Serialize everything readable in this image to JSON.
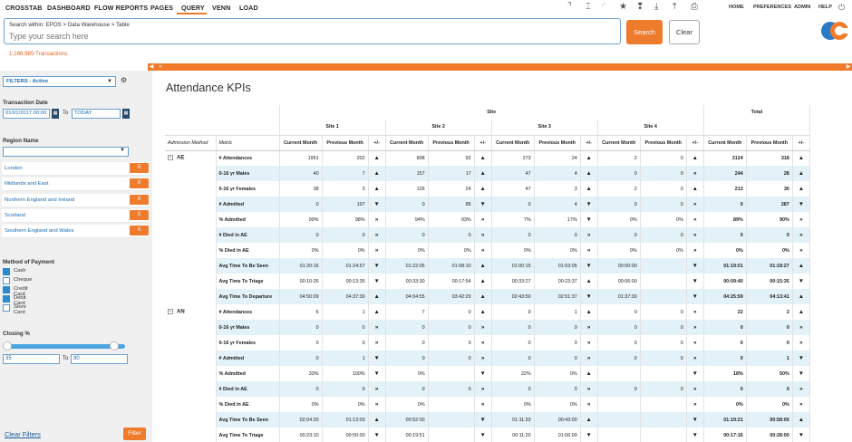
{
  "nav": {
    "items": [
      "CROSSTAB",
      "DASHBOARD",
      "FLOW REPORTS",
      "PAGES",
      "QUERY",
      "VENN",
      "LOAD"
    ],
    "active": "QUERY",
    "right_links": [
      "HOME",
      "PREFERENCES",
      "ADMIN",
      "HELP"
    ],
    "tool_icons": [
      "corner-icon",
      "cursor-icon",
      "loading-icon",
      "star-icon",
      "tag-icon",
      "download-icon",
      "upload-icon",
      "download-tray-icon",
      "printer-icon"
    ],
    "power_icon": "power-icon"
  },
  "search": {
    "breadcrumb": "Search within: EPOS   >   Data Warehouse   >   Table",
    "placeholder": "Type your search here",
    "search_label": "Search",
    "clear_label": "Clear",
    "transactions": "1,166,985 Transactions"
  },
  "colors": {
    "accent": "#ef7b2c",
    "link": "#1a6bb0",
    "row_alt": "#e3f1f8"
  },
  "sidebar": {
    "filters_label": "FILTERS - Active",
    "transaction_date_label": "Transaction Date",
    "date_from": "01/01/2017 00:00",
    "to_label": "To",
    "date_to": "TODAY",
    "region_label": "Region Name",
    "regions": [
      "London",
      "Midlands and East",
      "Northern England and Ireland",
      "Scotland",
      "Southern England and Wales"
    ],
    "remove_label": "X",
    "payment_label": "Method of Payment",
    "payments": [
      {
        "label": "Cash",
        "checked": true
      },
      {
        "label": "Cheque",
        "checked": false
      },
      {
        "label": "Credit Card",
        "checked": true
      },
      {
        "label": "Debit Card",
        "checked": true
      },
      {
        "label": "Store Card",
        "checked": false
      }
    ],
    "closing_label": "Closing %",
    "closing_from": "35",
    "closing_to": "90",
    "closing_range": [
      0.35,
      0.9
    ],
    "clear_filters": "Clear Filters",
    "filter_button": "Filter"
  },
  "report": {
    "title": "Attendance KPIs",
    "site_header": "Site",
    "total_header": "Total",
    "sites": [
      "Site 1",
      "Site 2",
      "Site 3",
      "Site 4"
    ],
    "admission_method_header": "Admission Method",
    "metric_header": "Metric",
    "col_current": "Current Month",
    "col_previous": "Previous Month",
    "col_change": "+/-",
    "groups": [
      {
        "name": "AE",
        "rows": [
          {
            "metric": "# Attendances",
            "cells": [
              [
                "1951",
                "202",
                "up"
              ],
              [
                "898",
                "92",
                "up"
              ],
              [
                "273",
                "24",
                "up"
              ],
              [
                "2",
                "0",
                "up"
              ],
              [
                "3124",
                "318",
                "up"
              ]
            ]
          },
          {
            "metric": "0-16 yr Males",
            "cells": [
              [
                "40",
                "7",
                "up"
              ],
              [
                "157",
                "17",
                "up"
              ],
              [
                "47",
                "4",
                "up"
              ],
              [
                "0",
                "0",
                "right"
              ],
              [
                "244",
                "28",
                "up"
              ]
            ]
          },
          {
            "metric": "0-16 yr Females",
            "cells": [
              [
                "38",
                "3",
                "up"
              ],
              [
                "126",
                "24",
                "up"
              ],
              [
                "47",
                "3",
                "up"
              ],
              [
                "2",
                "0",
                "up"
              ],
              [
                "213",
                "30",
                "up"
              ]
            ]
          },
          {
            "metric": "# Admitted",
            "cells": [
              [
                "0",
                "197",
                "down"
              ],
              [
                "0",
                "86",
                "down"
              ],
              [
                "0",
                "4",
                "down"
              ],
              [
                "0",
                "0",
                "right"
              ],
              [
                "0",
                "287",
                "down"
              ]
            ]
          },
          {
            "metric": "% Admitted",
            "cells": [
              [
                "99%",
                "98%",
                "right"
              ],
              [
                "94%",
                "93%",
                "right"
              ],
              [
                "7%",
                "17%",
                "down"
              ],
              [
                "0%",
                "0%",
                "right"
              ],
              [
                "89%",
                "90%",
                "right"
              ]
            ]
          },
          {
            "metric": "# Died in AE",
            "cells": [
              [
                "0",
                "0",
                "right"
              ],
              [
                "0",
                "0",
                "right"
              ],
              [
                "0",
                "0",
                "right"
              ],
              [
                "0",
                "0",
                "right"
              ],
              [
                "0",
                "0",
                "right"
              ]
            ]
          },
          {
            "metric": "% Died in AE",
            "cells": [
              [
                "0%",
                "0%",
                "right"
              ],
              [
                "0%",
                "0%",
                "right"
              ],
              [
                "0%",
                "0%",
                "right"
              ],
              [
                "0%",
                "0%",
                "right"
              ],
              [
                "0%",
                "0%",
                "right"
              ]
            ]
          },
          {
            "metric": "Avg Time To Be Seen",
            "cells": [
              [
                "01:20:16",
                "01:24:57",
                "down"
              ],
              [
                "01:22:05",
                "01:08:10",
                "up"
              ],
              [
                "01:00:15",
                "01:03:05",
                "down"
              ],
              [
                "00:50:00",
                "",
                "down"
              ],
              [
                "01:19:01",
                "01:18:27",
                "up"
              ]
            ]
          },
          {
            "metric": "Avg Time To Triage",
            "cells": [
              [
                "00:10:26",
                "00:13:35",
                "down"
              ],
              [
                "00:33:30",
                "00:17:54",
                "up"
              ],
              [
                "00:33:27",
                "00:23:37",
                "up"
              ],
              [
                "00:06:00",
                "",
                "down"
              ],
              [
                "00:09:40",
                "00:15:35",
                "down"
              ]
            ]
          },
          {
            "metric": "Avg Time To Departure",
            "cells": [
              [
                "04:50:09",
                "04:37:39",
                "up"
              ],
              [
                "04:04:55",
                "03:42:29",
                "up"
              ],
              [
                "02:43:50",
                "02:51:37",
                "down"
              ],
              [
                "01:37:30",
                "",
                "down"
              ],
              [
                "04:25:59",
                "04:13:41",
                "up"
              ]
            ]
          }
        ]
      },
      {
        "name": "AN",
        "rows": [
          {
            "metric": "# Attendances",
            "cells": [
              [
                "6",
                "1",
                "up"
              ],
              [
                "7",
                "0",
                "up"
              ],
              [
                "9",
                "1",
                "up"
              ],
              [
                "0",
                "0",
                "right"
              ],
              [
                "22",
                "2",
                "up"
              ]
            ]
          },
          {
            "metric": "0-16 yr Males",
            "cells": [
              [
                "0",
                "0",
                "right"
              ],
              [
                "0",
                "0",
                "right"
              ],
              [
                "0",
                "0",
                "right"
              ],
              [
                "0",
                "0",
                "right"
              ],
              [
                "0",
                "0",
                "right"
              ]
            ]
          },
          {
            "metric": "0-16 yr Females",
            "cells": [
              [
                "0",
                "0",
                "right"
              ],
              [
                "0",
                "0",
                "right"
              ],
              [
                "0",
                "0",
                "right"
              ],
              [
                "0",
                "0",
                "right"
              ],
              [
                "0",
                "0",
                "right"
              ]
            ]
          },
          {
            "metric": "# Admitted",
            "cells": [
              [
                "0",
                "1",
                "down"
              ],
              [
                "0",
                "0",
                "right"
              ],
              [
                "0",
                "0",
                "right"
              ],
              [
                "0",
                "0",
                "right"
              ],
              [
                "0",
                "1",
                "down"
              ]
            ]
          },
          {
            "metric": "% Admitted",
            "cells": [
              [
                "33%",
                "100%",
                "down"
              ],
              [
                "0%",
                "",
                "down"
              ],
              [
                "22%",
                "0%",
                "up"
              ],
              [
                "",
                "",
                "down"
              ],
              [
                "18%",
                "50%",
                "down"
              ]
            ]
          },
          {
            "metric": "# Died in AE",
            "cells": [
              [
                "0",
                "0",
                "right"
              ],
              [
                "0",
                "0",
                "right"
              ],
              [
                "0",
                "0",
                "right"
              ],
              [
                "0",
                "0",
                "right"
              ],
              [
                "0",
                "0",
                "right"
              ]
            ]
          },
          {
            "metric": "% Died in AE",
            "cells": [
              [
                "0%",
                "0%",
                "right"
              ],
              [
                "0%",
                "",
                "right"
              ],
              [
                "0%",
                "0%",
                "right"
              ],
              [
                "",
                "",
                "right"
              ],
              [
                "0%",
                "0%",
                "right"
              ]
            ]
          },
          {
            "metric": "Avg Time To Be Seen",
            "cells": [
              [
                "02:04:30",
                "01:13:00",
                "up"
              ],
              [
                "00:52:00",
                "",
                "down"
              ],
              [
                "01:11:33",
                "00:43:00",
                "up"
              ],
              [
                "",
                "",
                "down"
              ],
              [
                "01:19:21",
                "00:58:00",
                "up"
              ]
            ]
          },
          {
            "metric": "Avg Time To Triage",
            "cells": [
              [
                "00:23:10",
                "00:50:00",
                "down"
              ],
              [
                "00:19:51",
                "",
                "down"
              ],
              [
                "00:11:20",
                "01:06:00",
                "down"
              ],
              [
                "",
                "",
                "down"
              ],
              [
                "00:17:16",
                "00:28:00",
                "down"
              ]
            ]
          }
        ]
      }
    ]
  }
}
